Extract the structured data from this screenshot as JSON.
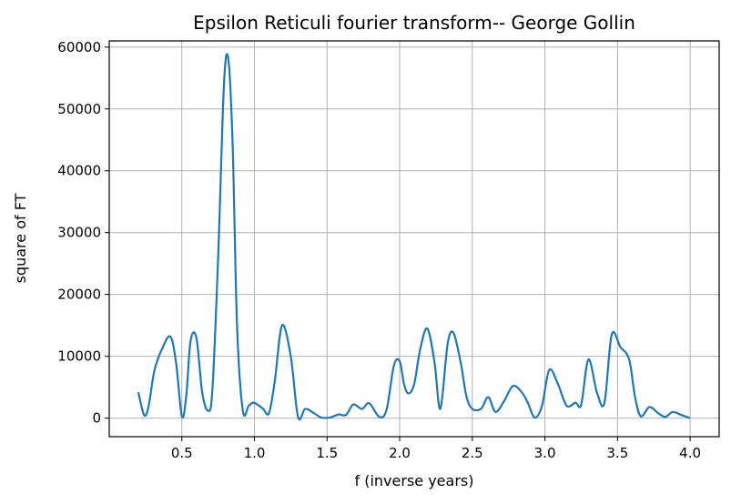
{
  "chart_data": {
    "type": "line",
    "title": "Epsilon Reticuli fourier transform-- George Gollin",
    "xlabel": "f (inverse years)",
    "ylabel": "square of FT",
    "xlim": [
      -0.0,
      4.2
    ],
    "ylim": [
      -3000,
      61000
    ],
    "xticks": [
      "0.5",
      "1.0",
      "1.5",
      "2.0",
      "2.5",
      "3.0",
      "3.5",
      "4.0"
    ],
    "yticks": [
      "0",
      "10000",
      "20000",
      "30000",
      "40000",
      "50000",
      "60000"
    ],
    "grid": true,
    "line_color": "#1f77b4",
    "series": [
      {
        "x": [
          0.2,
          0.24,
          0.27,
          0.31,
          0.36,
          0.42,
          0.46,
          0.5,
          0.53,
          0.56,
          0.6,
          0.64,
          0.68,
          0.71,
          0.75,
          0.79,
          0.82,
          0.85,
          0.88,
          0.92,
          0.96,
          0.99,
          1.02,
          1.06,
          1.1,
          1.14,
          1.19,
          1.25,
          1.3,
          1.35,
          1.41,
          1.46,
          1.52,
          1.58,
          1.63,
          1.68,
          1.74,
          1.79,
          1.86,
          1.91,
          1.96,
          2.0,
          2.03,
          2.06,
          2.1,
          2.14,
          2.19,
          2.24,
          2.28,
          2.33,
          2.37,
          2.42,
          2.46,
          2.5,
          2.56,
          2.61,
          2.66,
          2.72,
          2.78,
          2.84,
          2.88,
          2.93,
          2.98,
          3.03,
          3.09,
          3.15,
          3.21,
          3.25,
          3.3,
          3.36,
          3.41,
          3.46,
          3.52,
          3.58,
          3.62,
          3.66,
          3.72,
          3.78,
          3.83,
          3.88,
          3.94,
          4.0
        ],
        "y": [
          4200,
          500,
          1800,
          7600,
          11000,
          13200,
          9000,
          300,
          3500,
          12500,
          13000,
          4200,
          1200,
          4500,
          26000,
          54000,
          58000,
          44000,
          15000,
          1200,
          2000,
          2500,
          2200,
          1500,
          800,
          6000,
          15000,
          10000,
          200,
          1500,
          800,
          100,
          100,
          600,
          500,
          2200,
          1500,
          2400,
          200,
          1400,
          8500,
          9200,
          5500,
          4000,
          5500,
          11000,
          14500,
          9000,
          1500,
          12000,
          13800,
          9000,
          3500,
          1500,
          1500,
          3400,
          1000,
          2800,
          5200,
          4200,
          2600,
          100,
          2000,
          7800,
          5500,
          2000,
          2500,
          2200,
          9500,
          4000,
          2500,
          13500,
          11500,
          9500,
          3500,
          300,
          1800,
          800,
          200,
          1000,
          500,
          0
        ]
      }
    ]
  }
}
